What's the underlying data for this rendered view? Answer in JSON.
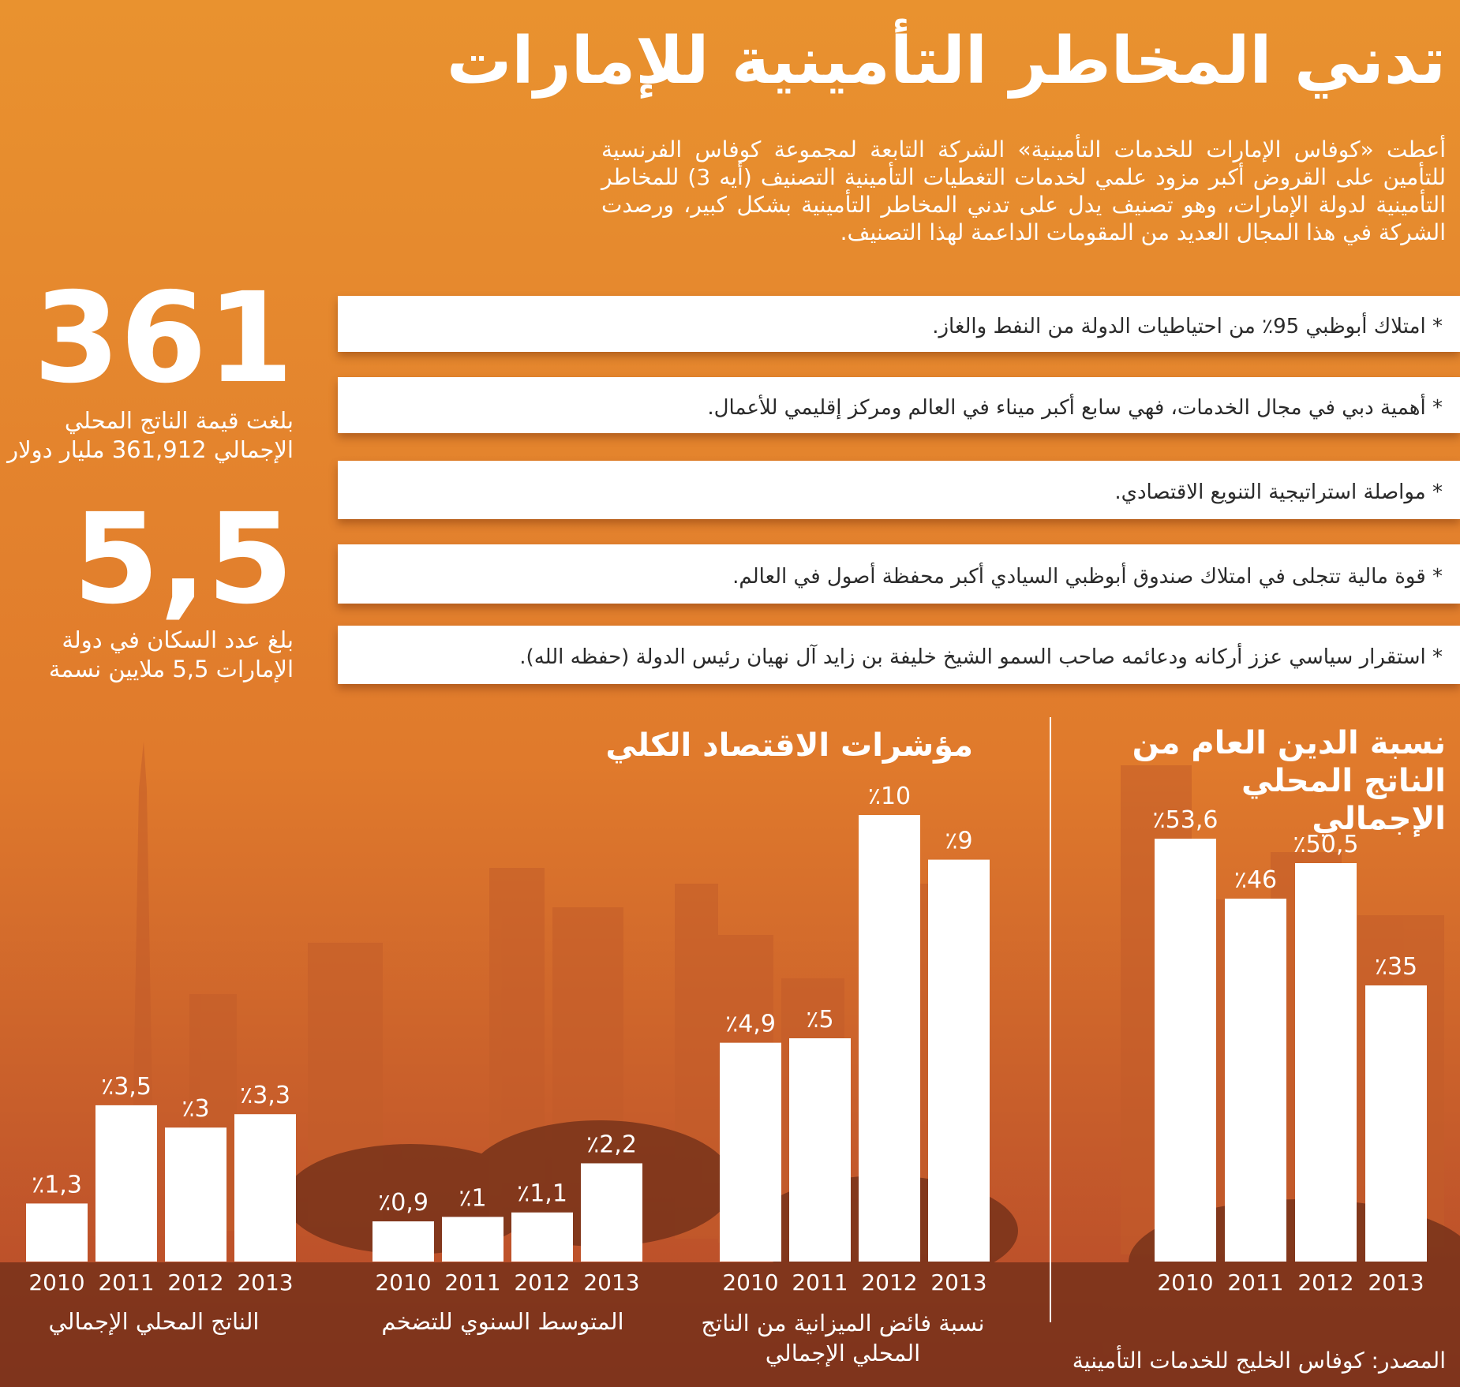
{
  "title": "تدني المخاطر التأمينية للإمارات",
  "intro": "أعطت «كوفاس الإمارات للخدمات التأمينية» الشركة التابعة لمجموعة كوفاس الفرنسية للتأمين على القروض أكبر مزود علمي لخدمات التغطيات التأمينية التصنيف (أيه 3) للمخاطر التأمينية لدولة الإمارات، وهو تصنيف يدل على تدني المخاطر التأمينية بشكل كبير، ورصدت الشركة في هذا المجال العديد من المقومات الداعمة لهذا التصنيف.",
  "bullets": [
    "* امتلاك أبوظبي 95٪ من احتياطيات الدولة من النفط والغاز.",
    "* أهمية دبي في مجال الخدمات، فهي سابع أكبر ميناء في العالم ومركز إقليمي للأعمال.",
    "* مواصلة استراتيجية التنويع الاقتصادي.",
    "* قوة مالية تتجلى في امتلاك صندوق أبوظبي السيادي أكبر محفظة أصول في العالم.",
    "* استقرار سياسي عزز أركانه ودعائمه صاحب السمو الشيخ خليفة بن زايد آل نهيان رئيس الدولة (حفظه الله)."
  ],
  "stats": [
    {
      "number": "361",
      "caption": "بلغت قيمة الناتج المحلي الإجمالي 361,912 مليار دولار"
    },
    {
      "number": "5,5",
      "caption": "بلغ عدد السكان في دولة الإمارات 5,5 ملايين نسمة"
    }
  ],
  "section_title": "مؤشرات الاقتصاد الكلي",
  "chart_data": [
    {
      "type": "bar",
      "title": "الناتج المحلي الإجمالي",
      "color": "#ffffff",
      "categories": [
        "2010",
        "2011",
        "2012",
        "2013"
      ],
      "values": [
        1.3,
        3.5,
        3,
        3.3
      ],
      "value_labels": [
        "٪1,3",
        "٪3,5",
        "٪3",
        "٪3,3"
      ]
    },
    {
      "type": "bar",
      "title": "المتوسط السنوي للتضخم",
      "color": "#ffffff",
      "categories": [
        "2010",
        "2011",
        "2012",
        "2013"
      ],
      "values": [
        0.9,
        1,
        1.1,
        2.2
      ],
      "value_labels": [
        "٪0,9",
        "٪1",
        "٪1,1",
        "٪2,2"
      ]
    },
    {
      "type": "bar",
      "title": "نسبة فائض الميزانية من الناتج المحلي الإجمالي",
      "color": "#ffffff",
      "categories": [
        "2010",
        "2011",
        "2012",
        "2013"
      ],
      "values": [
        4.9,
        5,
        10,
        9
      ],
      "value_labels": [
        "٪4,9",
        "٪5",
        "٪10",
        "٪9"
      ]
    },
    {
      "type": "bar",
      "title": "نسبة الدين العام من الناتج المحلي الإجمالي",
      "color": "#ffffff",
      "categories": [
        "2010",
        "2011",
        "2012",
        "2013"
      ],
      "values": [
        53.6,
        46,
        50.5,
        35
      ],
      "value_labels": [
        "٪53,6",
        "٪46",
        "٪50,5",
        "٪35"
      ]
    }
  ],
  "source": "المصدر: كوفاس الخليج للخدمات التأمينية"
}
